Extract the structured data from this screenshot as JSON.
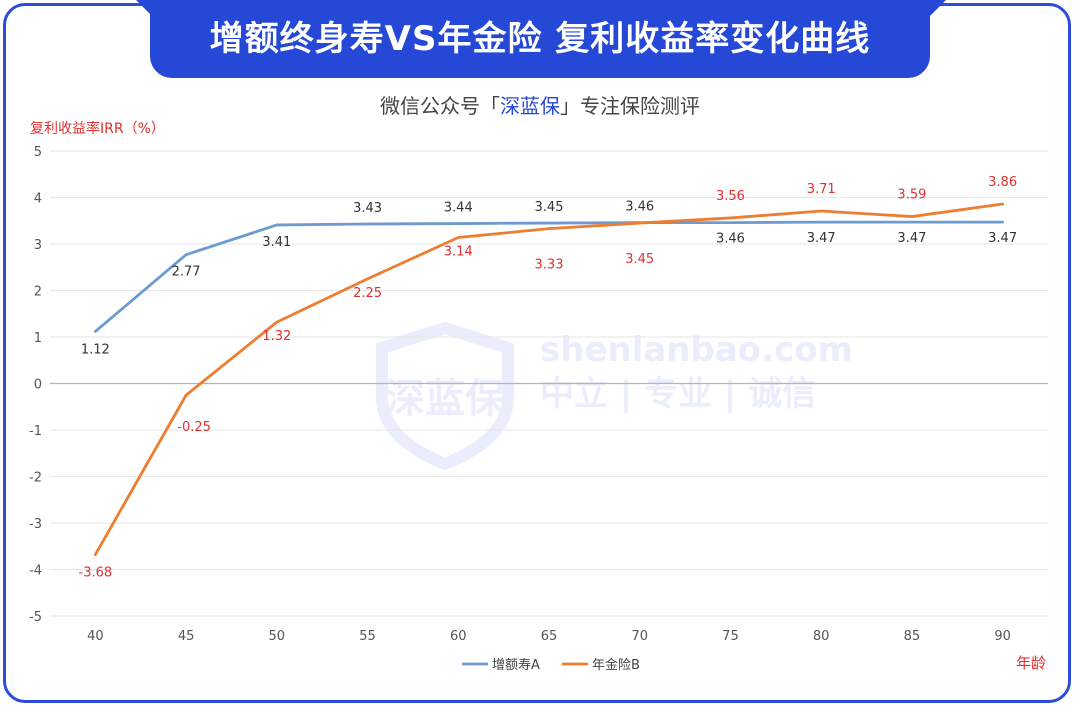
{
  "header": {
    "title": "增额终身寿VS年金险 复利收益率变化曲线",
    "subtitle_prefix": "微信公众号「",
    "subtitle_brand": "深蓝保",
    "subtitle_suffix": "」专注保险测评"
  },
  "watermark": {
    "logo_text": "深蓝保",
    "line1": "shenlanbao.com",
    "line2": "中立 | 专业 | 诚信"
  },
  "chart_data": {
    "type": "line",
    "title": "",
    "ylabel": "复利收益率IRR（%）",
    "xlabel": "年龄",
    "x": [
      40,
      45,
      50,
      55,
      60,
      65,
      70,
      75,
      80,
      85,
      90
    ],
    "ylim": [
      -5,
      5
    ],
    "yticks": [
      5,
      4,
      3,
      2,
      1,
      0,
      -1,
      -2,
      -3,
      -4,
      -5
    ],
    "grid": true,
    "legend_position": "bottom",
    "series": [
      {
        "name": "增额寿A",
        "color": "#6b9bd1",
        "label_color": "#333333",
        "values": [
          1.12,
          2.77,
          3.41,
          3.43,
          3.44,
          3.45,
          3.46,
          3.46,
          3.47,
          3.47,
          3.47
        ],
        "labels": [
          "1.12",
          "2.77",
          "3.41",
          "3.43",
          "3.44",
          "3.45",
          "3.46",
          "3.46",
          "3.47",
          "3.47",
          "3.47"
        ]
      },
      {
        "name": "年金险B",
        "color": "#ed7d31",
        "label_color": "#e03030",
        "values": [
          -3.68,
          -0.25,
          1.32,
          2.25,
          3.14,
          3.33,
          3.45,
          3.56,
          3.71,
          3.59,
          3.86
        ],
        "labels": [
          "-3.68",
          "-0.25",
          "1.32",
          "2.25",
          "3.14",
          "3.33",
          "3.45",
          "3.56",
          "3.71",
          "3.59",
          "3.86"
        ]
      }
    ]
  }
}
